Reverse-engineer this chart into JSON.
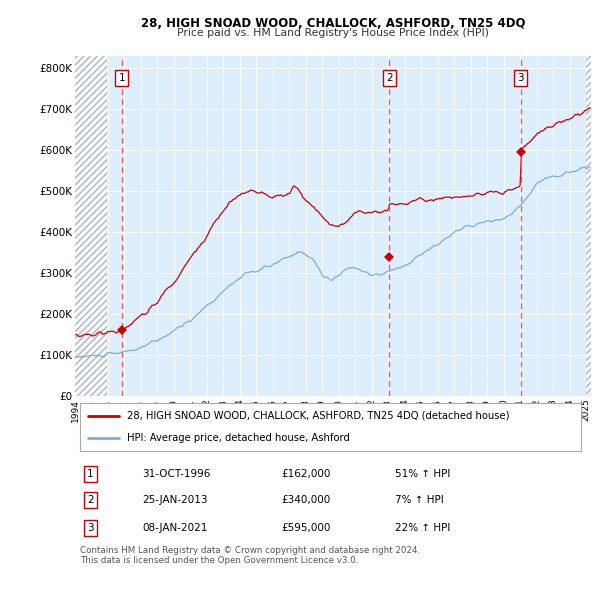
{
  "title1": "28, HIGH SNOAD WOOD, CHALLOCK, ASHFORD, TN25 4DQ",
  "title2": "Price paid vs. HM Land Registry's House Price Index (HPI)",
  "ylabel_ticks": [
    "£0",
    "£100K",
    "£200K",
    "£300K",
    "£400K",
    "£500K",
    "£600K",
    "£700K",
    "£800K"
  ],
  "ytick_values": [
    0,
    100000,
    200000,
    300000,
    400000,
    500000,
    600000,
    700000,
    800000
  ],
  "ylim": [
    0,
    830000
  ],
  "xlim_start": 1994.0,
  "xlim_end": 2025.3,
  "sale_dates": [
    1996.833,
    2013.07,
    2021.03
  ],
  "sale_prices": [
    162000,
    340000,
    595000
  ],
  "sale_labels": [
    "1",
    "2",
    "3"
  ],
  "hpi_color": "#7ab0d8",
  "price_color": "#cc0000",
  "dashed_line_color": "#e06060",
  "plot_bg_color": "#ddeeff",
  "hatch_color": "#cccccc",
  "legend_line1": "28, HIGH SNOAD WOOD, CHALLOCK, ASHFORD, TN25 4DQ (detached house)",
  "legend_line2": "HPI: Average price, detached house, Ashford",
  "table_rows": [
    {
      "num": "1",
      "date": "31-OCT-1996",
      "price": "£162,000",
      "pct": "51% ↑ HPI"
    },
    {
      "num": "2",
      "date": "25-JAN-2013",
      "price": "£340,000",
      "pct": "7% ↑ HPI"
    },
    {
      "num": "3",
      "date": "08-JAN-2021",
      "price": "£595,000",
      "pct": "22% ↑ HPI"
    }
  ],
  "footer": "Contains HM Land Registry data © Crown copyright and database right 2024.\nThis data is licensed under the Open Government Licence v3.0."
}
